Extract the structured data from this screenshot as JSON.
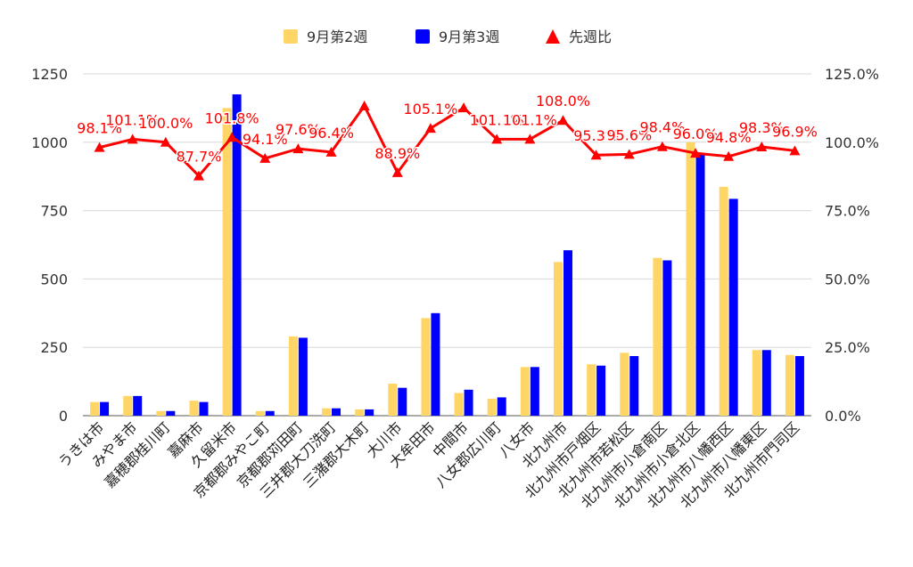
{
  "chart_data": {
    "type": "bar",
    "categories": [
      "うきは市",
      "みやま市",
      "嘉穂郡桂川町",
      "嘉麻市",
      "久留米市",
      "京都郡みやこ町",
      "京都郡苅田町",
      "三井郡大刀洗町",
      "三潴郡大木町",
      "大川市",
      "大牟田市",
      "中間市",
      "八女郡広川町",
      "八女市",
      "北九州市",
      "北九州市戸畑区",
      "北九州市若松区",
      "北九州市小倉南区",
      "北九州市小倉北区",
      "北九州市八幡西区",
      "北九州市八幡東区",
      "北九州市門司区"
    ],
    "series": [
      {
        "name": "9月第2週",
        "type": "bar",
        "axis": "left",
        "color": "#FFD666",
        "values": [
          50,
          72,
          17,
          55,
          1125,
          17,
          290,
          27,
          23,
          117,
          357,
          83,
          62,
          178,
          562,
          188,
          230,
          577,
          1000,
          837,
          240,
          222
        ]
      },
      {
        "name": "9月第3週",
        "type": "bar",
        "axis": "left",
        "color": "#0000FF",
        "values": [
          50,
          72,
          17,
          50,
          1175,
          17,
          285,
          27,
          23,
          102,
          375,
          95,
          67,
          178,
          605,
          183,
          218,
          568,
          960,
          793,
          240,
          218
        ]
      },
      {
        "name": "先週比",
        "type": "line",
        "axis": "right",
        "color": "#FF0000",
        "values": [
          98.1,
          101.1,
          100.0,
          87.7,
          101.8,
          94.1,
          97.6,
          96.4,
          113.3,
          88.9,
          105.1,
          112.6,
          101.1,
          101.1,
          108.0,
          95.3,
          95.6,
          98.4,
          96.0,
          94.8,
          98.3,
          96.9
        ],
        "labels": [
          "98.1%",
          "101.1%",
          "100.0%",
          "87.7%",
          "101.8%",
          "94.1%",
          "97.6%",
          "96.4%",
          "",
          "88.9%",
          "105.1%",
          "",
          "101.1%",
          "101.1%",
          "108.0%",
          "95.3%",
          "95.6%",
          "98.4%",
          "96.0%",
          "94.8%",
          "98.3%",
          "96.9%"
        ]
      }
    ],
    "y_left": {
      "min": 0,
      "max": 1250,
      "ticks": [
        "0",
        "250",
        "500",
        "750",
        "1000",
        "1250"
      ]
    },
    "y_right": {
      "min": 0,
      "max": 125,
      "ticks": [
        "0.0%",
        "25.0%",
        "50.0%",
        "75.0%",
        "100.0%",
        "125.0%"
      ]
    },
    "legend": {
      "position": "top",
      "items": [
        "9月第2週",
        "9月第3週",
        "先週比"
      ]
    },
    "grid": true
  }
}
